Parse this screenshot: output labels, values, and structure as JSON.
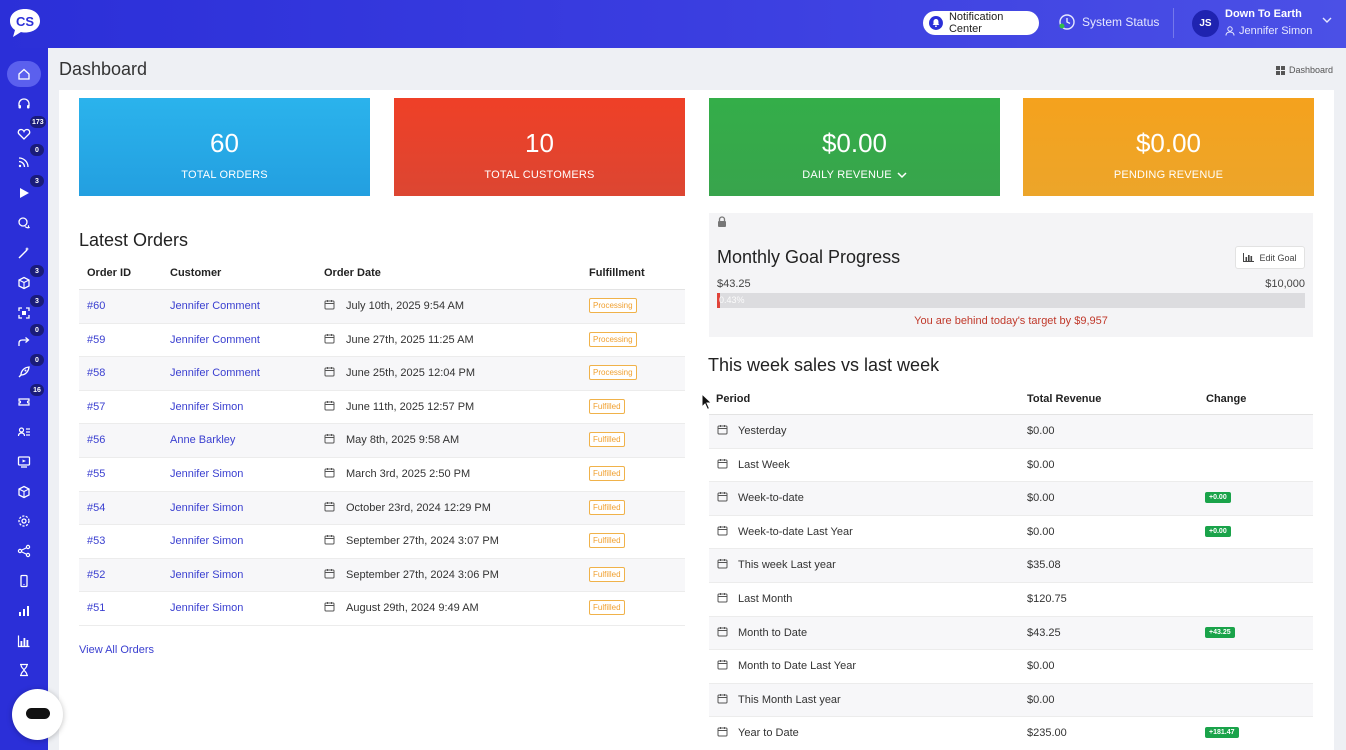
{
  "header": {
    "logo_text": "CS",
    "notification_label": "Notification Center",
    "system_status_label": "System Status",
    "avatar_initials": "JS",
    "account_name": "Down To Earth",
    "user_name": "Jennifer Simon"
  },
  "sidebar": {
    "items": [
      {
        "icon": "home-icon",
        "badge": "",
        "active": true
      },
      {
        "icon": "headset-icon",
        "badge": ""
      },
      {
        "icon": "heart-icon",
        "badge": "173"
      },
      {
        "icon": "rss-icon",
        "badge": "0"
      },
      {
        "icon": "play-icon",
        "badge": "3"
      },
      {
        "icon": "chat-icon",
        "badge": ""
      },
      {
        "icon": "magic-wand-icon",
        "badge": ""
      },
      {
        "icon": "box-icon",
        "badge": "3"
      },
      {
        "icon": "scan-icon",
        "badge": "3"
      },
      {
        "icon": "share-arrow-icon",
        "badge": "0"
      },
      {
        "icon": "rocket-icon",
        "badge": "0"
      },
      {
        "icon": "ticket-icon",
        "badge": "16"
      },
      {
        "icon": "contacts-icon",
        "badge": ""
      },
      {
        "icon": "screen-icon",
        "badge": ""
      },
      {
        "icon": "cube-icon",
        "badge": ""
      },
      {
        "icon": "settings-icon",
        "badge": ""
      },
      {
        "icon": "network-icon",
        "badge": ""
      },
      {
        "icon": "mobile-icon",
        "badge": ""
      },
      {
        "icon": "bar-chart-icon",
        "badge": ""
      },
      {
        "icon": "analytics-icon",
        "badge": ""
      },
      {
        "icon": "hourglass-icon",
        "badge": ""
      }
    ]
  },
  "page": {
    "title": "Dashboard",
    "breadcrumb": "Dashboard"
  },
  "stats": [
    {
      "value": "60",
      "label": "TOTAL ORDERS",
      "color": "#2aa9e8"
    },
    {
      "value": "10",
      "label": "TOTAL CUSTOMERS",
      "color": "#e8402a"
    },
    {
      "value": "$0.00",
      "label": "DAILY REVENUE",
      "color": "#34a84a"
    },
    {
      "value": "$0.00",
      "label": "PENDING REVENUE",
      "color": "#f2a01f"
    }
  ],
  "orders": {
    "title": "Latest Orders",
    "columns": [
      "Order ID",
      "Customer",
      "Order Date",
      "Fulfillment"
    ],
    "rows": [
      {
        "id": "#60",
        "customer": "Jennifer Comment",
        "date": "July 10th, 2025 9:54 AM",
        "status": "Processing"
      },
      {
        "id": "#59",
        "customer": "Jennifer Comment",
        "date": "June 27th, 2025 11:25 AM",
        "status": "Processing"
      },
      {
        "id": "#58",
        "customer": "Jennifer Comment",
        "date": "June 25th, 2025 12:04 PM",
        "status": "Processing"
      },
      {
        "id": "#57",
        "customer": "Jennifer Simon",
        "date": "June 11th, 2025 12:57 PM",
        "status": "Fulfilled"
      },
      {
        "id": "#56",
        "customer": "Anne Barkley",
        "date": "May 8th, 2025 9:58 AM",
        "status": "Fulfilled"
      },
      {
        "id": "#55",
        "customer": "Jennifer Simon",
        "date": "March 3rd, 2025 2:50 PM",
        "status": "Fulfilled"
      },
      {
        "id": "#54",
        "customer": "Jennifer Simon",
        "date": "October 23rd, 2024 12:29 PM",
        "status": "Fulfilled"
      },
      {
        "id": "#53",
        "customer": "Jennifer Simon",
        "date": "September 27th, 2024 3:07 PM",
        "status": "Fulfilled"
      },
      {
        "id": "#52",
        "customer": "Jennifer Simon",
        "date": "September 27th, 2024 3:06 PM",
        "status": "Fulfilled"
      },
      {
        "id": "#51",
        "customer": "Jennifer Simon",
        "date": "August 29th, 2024 9:49 AM",
        "status": "Fulfilled"
      }
    ],
    "view_all_label": "View All Orders"
  },
  "goal": {
    "title": "Monthly Goal Progress",
    "edit_label": "Edit Goal",
    "current": "$43.25",
    "target": "$10,000",
    "percent_label": "0.43%",
    "progress": 0.0043,
    "message": "You are behind today's target by $9,957"
  },
  "sales": {
    "title": "This week sales vs last week",
    "columns": [
      "Period",
      "Total Revenue",
      "Change"
    ],
    "rows": [
      {
        "period": "Yesterday",
        "revenue": "$0.00",
        "change": ""
      },
      {
        "period": "Last Week",
        "revenue": "$0.00",
        "change": ""
      },
      {
        "period": "Week-to-date",
        "revenue": "$0.00",
        "change": "+0.00"
      },
      {
        "period": "Week-to-date Last Year",
        "revenue": "$0.00",
        "change": "+0.00"
      },
      {
        "period": "This week Last year",
        "revenue": "$35.08",
        "change": ""
      },
      {
        "period": "Last Month",
        "revenue": "$120.75",
        "change": ""
      },
      {
        "period": "Month to Date",
        "revenue": "$43.25",
        "change": "+43.25"
      },
      {
        "period": "Month to Date Last Year",
        "revenue": "$0.00",
        "change": ""
      },
      {
        "period": "This Month Last year",
        "revenue": "$0.00",
        "change": ""
      },
      {
        "period": "Year to Date",
        "revenue": "$235.00",
        "change": "+181.47"
      }
    ]
  }
}
